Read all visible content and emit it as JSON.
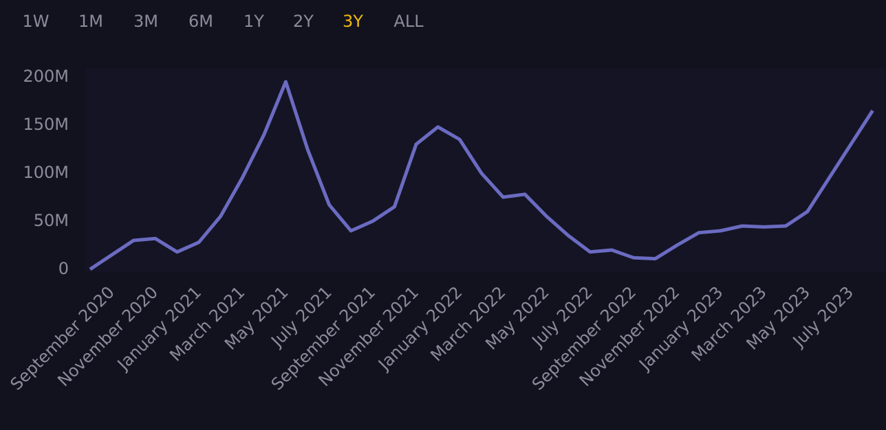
{
  "range_buttons": [
    "1W",
    "1M",
    "3M",
    "6M",
    "1Y",
    "2Y",
    "3Y",
    "ALL"
  ],
  "active_range": "3Y",
  "active_color": "#f0b90b",
  "chart_data": {
    "type": "line",
    "x": [
      "2020-08",
      "2020-09",
      "2020-10",
      "2020-11",
      "2020-12",
      "2021-01",
      "2021-02",
      "2021-03",
      "2021-04",
      "2021-05",
      "2021-06",
      "2021-07",
      "2021-08",
      "2021-09",
      "2021-10",
      "2021-11",
      "2021-12",
      "2022-01",
      "2022-02",
      "2022-03",
      "2022-04",
      "2022-05",
      "2022-06",
      "2022-07",
      "2022-08",
      "2022-09",
      "2022-10",
      "2022-11",
      "2022-12",
      "2023-01",
      "2023-02",
      "2023-03",
      "2023-04",
      "2023-05",
      "2023-06",
      "2023-07",
      "2023-08"
    ],
    "series": [
      {
        "color": "#6b6bc2",
        "values": [
          0,
          15000000,
          30000000,
          32000000,
          18000000,
          28000000,
          55000000,
          95000000,
          140000000,
          195000000,
          125000000,
          67000000,
          40000000,
          50000000,
          65000000,
          130000000,
          148000000,
          135000000,
          100000000,
          75000000,
          78000000,
          55000000,
          35000000,
          18000000,
          20000000,
          12000000,
          11000000,
          25000000,
          38000000,
          40000000,
          45000000,
          44000000,
          45000000,
          60000000,
          95000000,
          130000000,
          165000000
        ]
      }
    ],
    "ylim": [
      0,
      200000000
    ],
    "yticks": [
      0,
      {
        "value": 50000000,
        "label": "50M"
      },
      {
        "value": 100000000,
        "label": "100M"
      },
      {
        "value": 150000000,
        "label": "150M"
      },
      {
        "value": 200000000,
        "label": "200M"
      }
    ],
    "xticks": [
      {
        "value": "2020-09",
        "label": "September 2020"
      },
      {
        "value": "2020-11",
        "label": "November 2020"
      },
      {
        "value": "2021-01",
        "label": "January 2021"
      },
      {
        "value": "2021-03",
        "label": "March 2021"
      },
      {
        "value": "2021-05",
        "label": "May 2021"
      },
      {
        "value": "2021-07",
        "label": "July 2021"
      },
      {
        "value": "2021-09",
        "label": "September 2021"
      },
      {
        "value": "2021-11",
        "label": "November 2021"
      },
      {
        "value": "2022-01",
        "label": "January 2022"
      },
      {
        "value": "2022-03",
        "label": "March 2022"
      },
      {
        "value": "2022-05",
        "label": "May 2022"
      },
      {
        "value": "2022-07",
        "label": "July 2022"
      },
      {
        "value": "2022-09",
        "label": "September 2022"
      },
      {
        "value": "2022-11",
        "label": "November 2022"
      },
      {
        "value": "2023-01",
        "label": "January 2023"
      },
      {
        "value": "2023-03",
        "label": "March 2023"
      },
      {
        "value": "2023-05",
        "label": "May 2023"
      },
      {
        "value": "2023-07",
        "label": "July 2023"
      }
    ]
  }
}
